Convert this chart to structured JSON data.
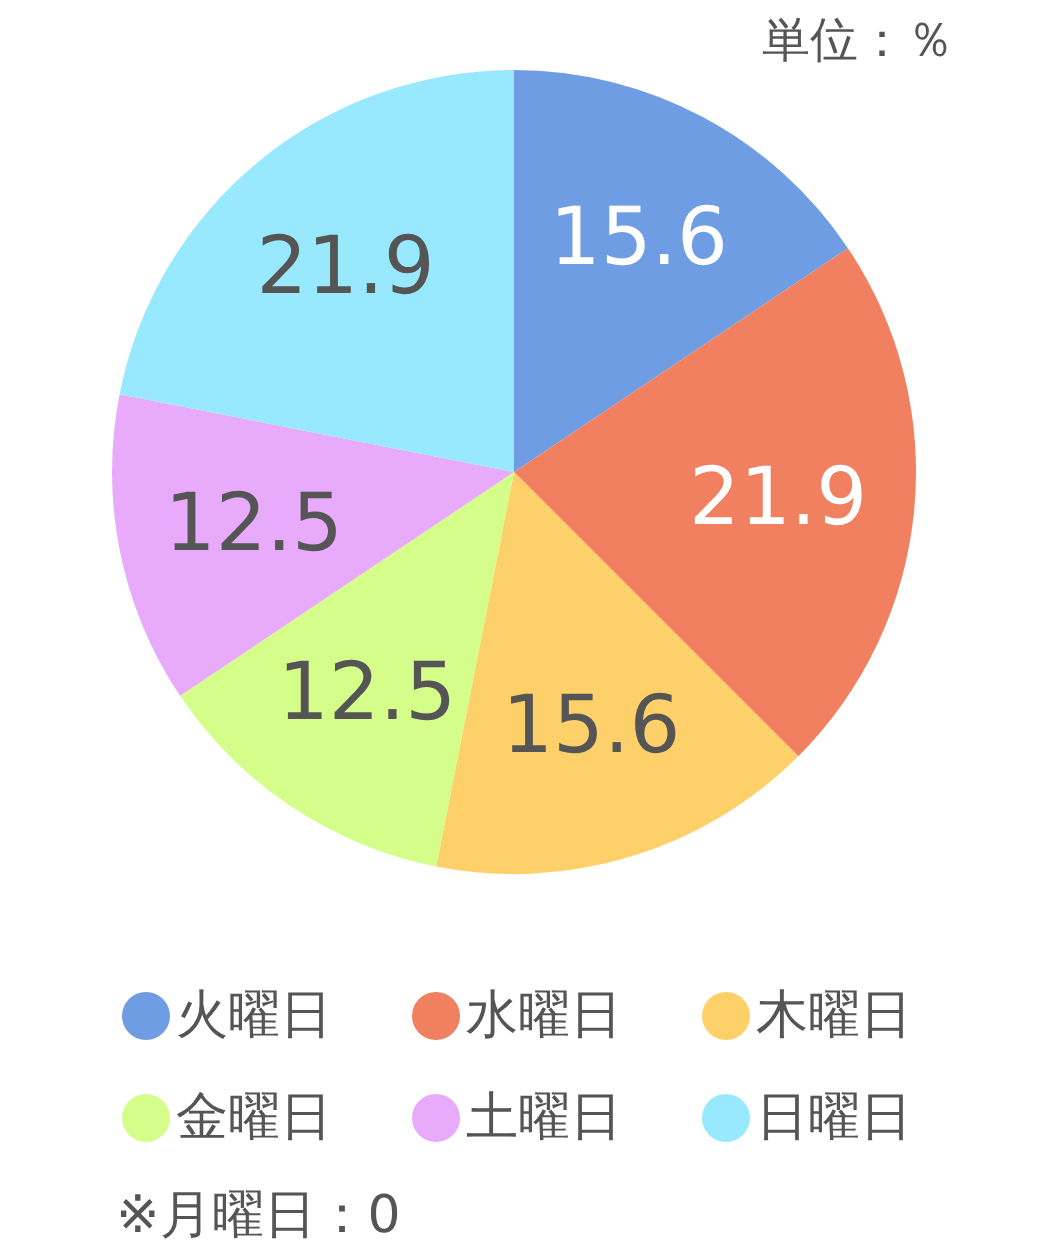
{
  "chart_data": {
    "type": "pie",
    "categories": [
      "火曜日",
      "水曜日",
      "木曜日",
      "金曜日",
      "土曜日",
      "日曜日"
    ],
    "values": [
      15.6,
      21.9,
      15.6,
      12.5,
      12.5,
      21.9
    ],
    "colors": [
      "#6e9de4",
      "#f08060",
      "#fed06a",
      "#d5fd8a",
      "#e8abfc",
      "#98e8fe"
    ],
    "data_labels": true,
    "legend": "bottom",
    "annotations": [
      "単位：％",
      "※月曜日：0"
    ]
  }
}
